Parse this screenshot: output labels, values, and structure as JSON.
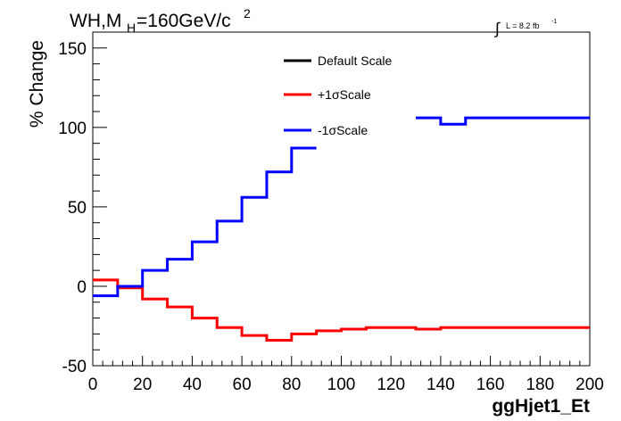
{
  "header": {
    "title_main": "WH,M",
    "title_sub": "H",
    "title_rest": "=160GeV/c",
    "title_sup": "2",
    "lumi_integral": "∫",
    "lumi_text": "L = 8.2 fb",
    "lumi_sup": "-1"
  },
  "chart_data": {
    "type": "line",
    "title": "WH,M_H=160GeV/c^2",
    "xlabel": "ggHjet1_Et",
    "ylabel": "% Change",
    "xlim": [
      0,
      200
    ],
    "ylim": [
      -50,
      160
    ],
    "x_ticks": [
      "0",
      "20",
      "40",
      "60",
      "80",
      "100",
      "120",
      "140",
      "160",
      "180",
      "200"
    ],
    "y_ticks": [
      "-50",
      "0",
      "50",
      "100",
      "150"
    ],
    "legend_position": "top-center",
    "bin_edges": [
      0,
      10,
      20,
      30,
      40,
      50,
      60,
      70,
      80,
      90,
      100,
      110,
      120,
      130,
      140,
      150,
      160,
      170,
      180,
      190,
      200
    ],
    "series": [
      {
        "name": "Default Scale",
        "color": "#000000",
        "values": []
      },
      {
        "name": "+1σScale",
        "color": "#ff0000",
        "values": [
          4,
          -1,
          -8,
          -13,
          -20,
          -26,
          -31,
          -34,
          -30,
          -28,
          -27,
          -26,
          -26,
          -27,
          -26,
          -26,
          -26,
          -26,
          -26,
          -26
        ]
      },
      {
        "name": "-1σScale",
        "color": "#0000ff",
        "values": [
          -6,
          0,
          10,
          17,
          28,
          41,
          56,
          72,
          87,
          null,
          null,
          null,
          null,
          106,
          102,
          106,
          106,
          106,
          106,
          106
        ]
      }
    ]
  }
}
